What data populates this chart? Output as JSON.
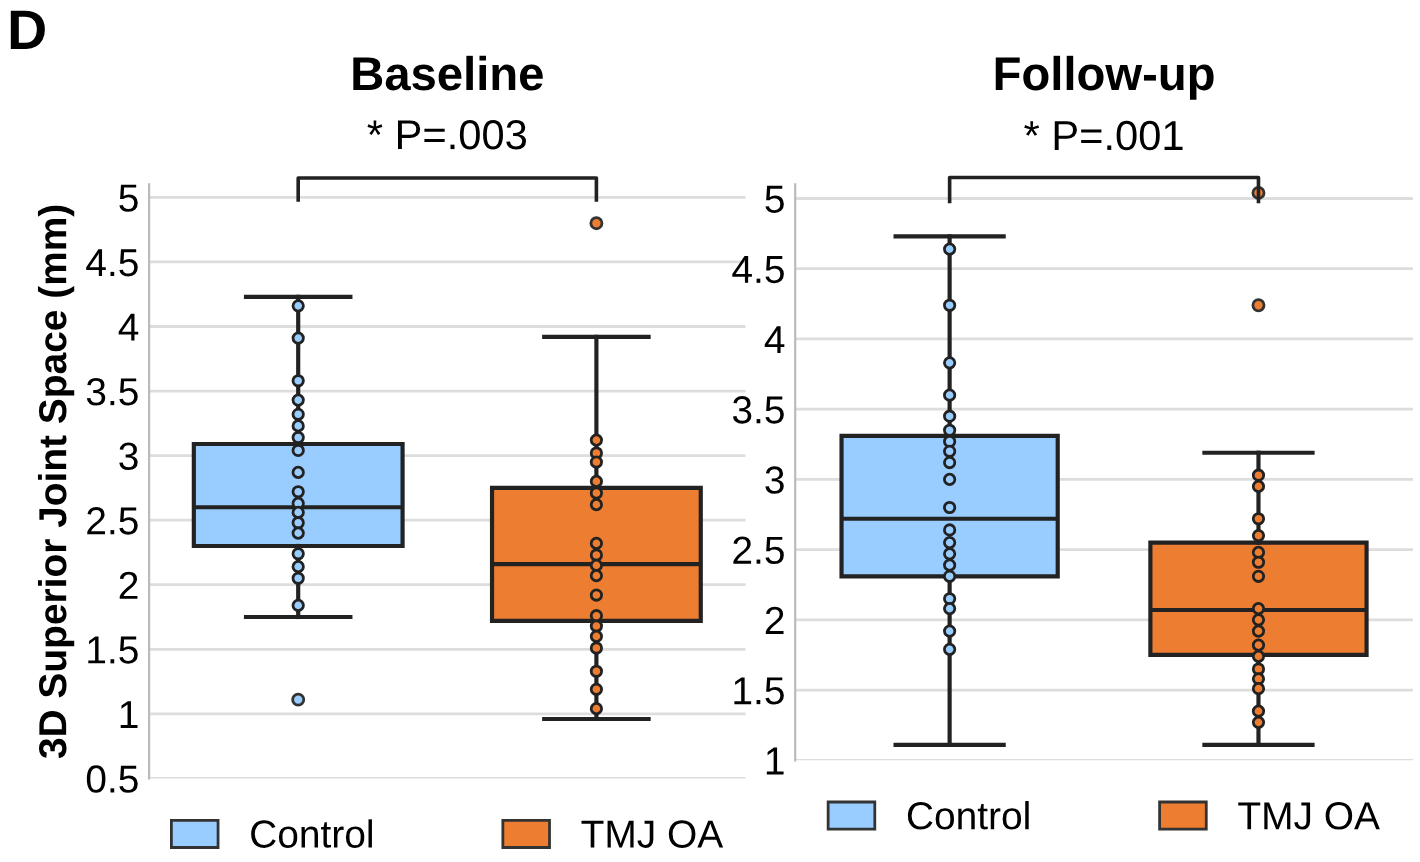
{
  "chart_data": [
    {
      "type": "box",
      "title": "Baseline",
      "ylabel": "3D Superior Joint Space (mm)",
      "categories": [
        "Control",
        "TMJ OA"
      ],
      "ylim": [
        0.5,
        5.1
      ],
      "yticks": [
        0.5,
        1,
        1.5,
        2,
        2.5,
        3,
        3.5,
        4,
        4.5,
        5
      ],
      "grid": "y",
      "legend": "bottom",
      "tick_labels": "y",
      "annotations": [
        "D",
        "* P=.003"
      ],
      "series": [
        {
          "name": "Control",
          "color": "#99ccff",
          "boxes": [
            {
              "low": 1.75,
              "q1": 2.3,
              "median": 2.6,
              "q3": 3.09,
              "high": 4.23,
              "outliers": [
                1.11
              ]
            },
            null
          ]
        },
        {
          "name": "TMJ OA",
          "color": "#ed7d31",
          "boxes": [
            null,
            {
              "low": 0.96,
              "q1": 1.72,
              "median": 2.16,
              "q3": 2.75,
              "high": 3.92,
              "outliers": [
                4.8
              ]
            }
          ]
        },
        {
          "type": "scatter",
          "color": "#99ccff",
          "x": [
            "Control",
            "Control",
            "Control",
            "Control",
            "Control",
            "Control",
            "Control",
            "Control",
            "Control",
            "Control",
            "Control",
            "Control",
            "Control",
            "Control",
            "Control",
            "Control",
            "Control",
            "Control"
          ],
          "values": [
            4.16,
            3.91,
            3.58,
            3.43,
            3.32,
            3.23,
            3.14,
            3.04,
            2.87,
            2.72,
            2.63,
            2.56,
            2.48,
            2.4,
            2.24,
            2.14,
            2.05,
            1.84
          ]
        },
        {
          "type": "scatter",
          "color": "#ed7d31",
          "x": [
            "TMJ OA",
            "TMJ OA",
            "TMJ OA",
            "TMJ OA",
            "TMJ OA",
            "TMJ OA",
            "TMJ OA",
            "TMJ OA",
            "TMJ OA",
            "TMJ OA",
            "TMJ OA",
            "TMJ OA",
            "TMJ OA",
            "TMJ OA",
            "TMJ OA",
            "TMJ OA",
            "TMJ OA",
            "TMJ OA"
          ],
          "values": [
            3.12,
            3.02,
            2.95,
            2.8,
            2.71,
            2.62,
            2.32,
            2.23,
            2.15,
            2.07,
            1.92,
            1.76,
            1.68,
            1.6,
            1.51,
            1.33,
            1.19,
            1.04
          ]
        }
      ]
    },
    {
      "type": "box",
      "title": "Follow-up",
      "categories": [
        "Control",
        "TMJ OA"
      ],
      "ylim": [
        1,
        5.1
      ],
      "yticks": [
        1,
        1.5,
        2,
        2.5,
        3,
        3.5,
        4,
        4.5,
        5
      ],
      "grid": "y",
      "legend": "bottom",
      "tick_labels": "y",
      "annotations": [
        "* P=.001"
      ],
      "series": [
        {
          "name": "Control",
          "color": "#99ccff",
          "boxes": [
            {
              "low": 1.11,
              "q1": 2.31,
              "median": 2.72,
              "q3": 3.31,
              "high": 4.73
            },
            null
          ]
        },
        {
          "name": "TMJ OA",
          "color": "#ed7d31",
          "boxes": [
            null,
            {
              "low": 1.11,
              "q1": 1.75,
              "median": 2.07,
              "q3": 2.55,
              "high": 3.19,
              "outliers": [
                5.04,
                4.24
              ]
            }
          ]
        },
        {
          "type": "scatter",
          "color": "#99ccff",
          "x": [
            "Control",
            "Control",
            "Control",
            "Control",
            "Control",
            "Control",
            "Control",
            "Control",
            "Control",
            "Control",
            "Control",
            "Control",
            "Control",
            "Control",
            "Control",
            "Control",
            "Control",
            "Control",
            "Control",
            "Control"
          ],
          "values": [
            4.64,
            4.24,
            3.83,
            3.6,
            3.45,
            3.35,
            3.27,
            3.2,
            3.12,
            3.0,
            2.8,
            2.64,
            2.55,
            2.47,
            2.39,
            2.31,
            2.15,
            2.08,
            1.92,
            1.79
          ]
        },
        {
          "type": "scatter",
          "color": "#ed7d31",
          "x": [
            "TMJ OA",
            "TMJ OA",
            "TMJ OA",
            "TMJ OA",
            "TMJ OA",
            "TMJ OA",
            "TMJ OA",
            "TMJ OA",
            "TMJ OA",
            "TMJ OA",
            "TMJ OA",
            "TMJ OA",
            "TMJ OA",
            "TMJ OA",
            "TMJ OA",
            "TMJ OA",
            "TMJ OA"
          ],
          "values": [
            3.03,
            2.95,
            2.72,
            2.6,
            2.48,
            2.41,
            2.31,
            2.08,
            2.0,
            1.92,
            1.82,
            1.74,
            1.65,
            1.58,
            1.51,
            1.35,
            1.27
          ]
        }
      ]
    }
  ]
}
